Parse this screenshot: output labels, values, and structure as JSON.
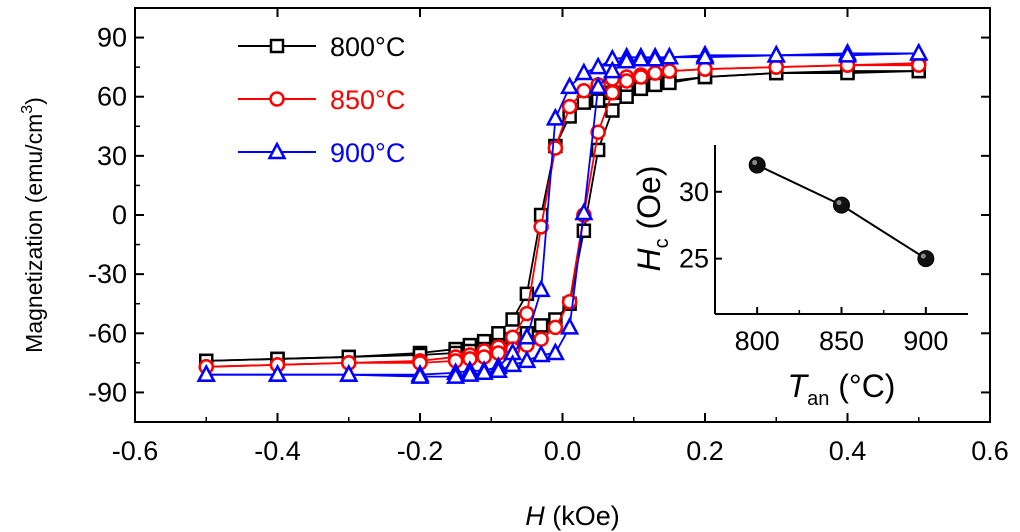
{
  "chart_data": [
    {
      "type": "line",
      "xlabel": {
        "symbol": "H",
        "unit": "(kOe)"
      },
      "ylabel": {
        "text": "Magnetization (emu/cm",
        "sup": "3",
        "close": ")"
      },
      "xlim": [
        -0.6,
        0.6
      ],
      "ylim": [
        -105,
        105
      ],
      "xticks": [
        "-0.6",
        "-0.4",
        "-0.2",
        "0.0",
        "0.2",
        "0.4",
        "0.6"
      ],
      "xtick_values": [
        -0.6,
        -0.4,
        -0.2,
        0.0,
        0.2,
        0.4,
        0.6
      ],
      "yticks": [
        "90",
        "60",
        "30",
        "0",
        "-30",
        "-60",
        "-90"
      ],
      "ytick_values": [
        90,
        60,
        30,
        0,
        -30,
        -60,
        -90
      ],
      "legend_position": "top-left",
      "series": [
        {
          "name": "800°C",
          "color": "#000000",
          "marker": "square",
          "descending": [
            [
              0.5,
              73
            ],
            [
              0.4,
              73
            ],
            [
              0.3,
              72
            ],
            [
              0.2,
              70
            ],
            [
              0.15,
              68
            ],
            [
              0.13,
              67
            ],
            [
              0.11,
              66
            ],
            [
              0.09,
              65
            ],
            [
              0.07,
              62
            ],
            [
              0.05,
              58
            ],
            [
              0.03,
              57
            ],
            [
              0.01,
              50
            ],
            [
              -0.01,
              35
            ],
            [
              -0.03,
              0
            ],
            [
              -0.05,
              -40
            ],
            [
              -0.07,
              -53
            ],
            [
              -0.09,
              -60
            ],
            [
              -0.11,
              -64
            ],
            [
              -0.13,
              -66
            ],
            [
              -0.15,
              -68
            ],
            [
              -0.2,
              -70
            ],
            [
              -0.3,
              -72
            ],
            [
              -0.4,
              -73
            ],
            [
              -0.5,
              -74
            ]
          ],
          "ascending": [
            [
              -0.5,
              -74
            ],
            [
              -0.4,
              -73
            ],
            [
              -0.3,
              -72
            ],
            [
              -0.2,
              -71
            ],
            [
              -0.15,
              -70
            ],
            [
              -0.13,
              -69
            ],
            [
              -0.11,
              -68
            ],
            [
              -0.09,
              -66
            ],
            [
              -0.07,
              -63
            ],
            [
              -0.05,
              -60
            ],
            [
              -0.03,
              -56
            ],
            [
              -0.01,
              -53
            ],
            [
              0.01,
              -45
            ],
            [
              0.03,
              -8
            ],
            [
              0.05,
              33
            ],
            [
              0.07,
              53
            ],
            [
              0.09,
              60
            ],
            [
              0.11,
              64
            ],
            [
              0.13,
              66
            ],
            [
              0.15,
              67
            ],
            [
              0.2,
              70
            ],
            [
              0.3,
              72
            ],
            [
              0.4,
              72
            ],
            [
              0.5,
              73
            ]
          ]
        },
        {
          "name": "850°C",
          "color": "#ff0000",
          "marker": "circle",
          "descending": [
            [
              0.5,
              77
            ],
            [
              0.4,
              76
            ],
            [
              0.3,
              75
            ],
            [
              0.2,
              74
            ],
            [
              0.15,
              73
            ],
            [
              0.13,
              72
            ],
            [
              0.11,
              71
            ],
            [
              0.09,
              70
            ],
            [
              0.07,
              69
            ],
            [
              0.05,
              66
            ],
            [
              0.03,
              63
            ],
            [
              0.01,
              55
            ],
            [
              -0.01,
              34
            ],
            [
              -0.03,
              -6
            ],
            [
              -0.05,
              -50
            ],
            [
              -0.07,
              -62
            ],
            [
              -0.09,
              -67
            ],
            [
              -0.11,
              -69
            ],
            [
              -0.13,
              -71
            ],
            [
              -0.15,
              -72
            ],
            [
              -0.2,
              -74
            ],
            [
              -0.3,
              -75
            ],
            [
              -0.4,
              -76
            ],
            [
              -0.5,
              -77
            ]
          ],
          "ascending": [
            [
              -0.5,
              -77
            ],
            [
              -0.4,
              -76
            ],
            [
              -0.3,
              -75
            ],
            [
              -0.2,
              -75
            ],
            [
              -0.15,
              -74
            ],
            [
              -0.13,
              -73
            ],
            [
              -0.11,
              -72
            ],
            [
              -0.09,
              -70
            ],
            [
              -0.07,
              -68
            ],
            [
              -0.05,
              -66
            ],
            [
              -0.03,
              -63
            ],
            [
              -0.01,
              -57
            ],
            [
              0.01,
              -44
            ],
            [
              0.03,
              0
            ],
            [
              0.05,
              42
            ],
            [
              0.07,
              62
            ],
            [
              0.09,
              68
            ],
            [
              0.11,
              70
            ],
            [
              0.13,
              72
            ],
            [
              0.15,
              73
            ],
            [
              0.2,
              74
            ],
            [
              0.3,
              75
            ],
            [
              0.4,
              76
            ],
            [
              0.5,
              76
            ]
          ]
        },
        {
          "name": "900°C",
          "color": "#0000ff",
          "marker": "triangle",
          "descending": [
            [
              0.5,
              82
            ],
            [
              0.4,
              82
            ],
            [
              0.3,
              81
            ],
            [
              0.2,
              81
            ],
            [
              0.15,
              80
            ],
            [
              0.13,
              80
            ],
            [
              0.11,
              80
            ],
            [
              0.09,
              80
            ],
            [
              0.07,
              79
            ],
            [
              0.05,
              75
            ],
            [
              0.03,
              72
            ],
            [
              0.01,
              65
            ],
            [
              -0.01,
              49
            ],
            [
              -0.03,
              -38
            ],
            [
              -0.05,
              -62
            ],
            [
              -0.07,
              -70
            ],
            [
              -0.09,
              -77
            ],
            [
              -0.11,
              -79
            ],
            [
              -0.13,
              -79
            ],
            [
              -0.15,
              -80
            ],
            [
              -0.2,
              -81
            ],
            [
              -0.3,
              -81
            ],
            [
              -0.4,
              -81
            ],
            [
              -0.5,
              -81
            ]
          ],
          "ascending": [
            [
              -0.5,
              -81
            ],
            [
              -0.4,
              -81
            ],
            [
              -0.3,
              -81
            ],
            [
              -0.2,
              -82
            ],
            [
              -0.15,
              -82
            ],
            [
              -0.13,
              -81
            ],
            [
              -0.11,
              -80
            ],
            [
              -0.09,
              -79
            ],
            [
              -0.07,
              -76
            ],
            [
              -0.05,
              -74
            ],
            [
              -0.03,
              -71
            ],
            [
              -0.01,
              -70
            ],
            [
              0.01,
              -57
            ],
            [
              0.03,
              1
            ],
            [
              0.05,
              65
            ],
            [
              0.07,
              73
            ],
            [
              0.09,
              78
            ],
            [
              0.11,
              79
            ],
            [
              0.13,
              79
            ],
            [
              0.15,
              80
            ],
            [
              0.2,
              80
            ],
            [
              0.3,
              81
            ],
            [
              0.4,
              81
            ],
            [
              0.5,
              82
            ]
          ]
        }
      ]
    },
    {
      "type": "line",
      "inset": true,
      "xlabel": {
        "symbol": "T",
        "sub": "an",
        "unit": "(°C)"
      },
      "ylabel": {
        "symbol": "H",
        "sub": "c",
        "unit": "(Oe)"
      },
      "xlim": [
        775,
        925
      ],
      "ylim": [
        24,
        33.5
      ],
      "xticks": [
        "800",
        "850",
        "900"
      ],
      "xtick_values": [
        800,
        850,
        900
      ],
      "yticks": [
        "30",
        "25"
      ],
      "ytick_values": [
        30,
        25
      ],
      "x": [
        800,
        850,
        900
      ],
      "y": [
        32,
        29,
        25
      ],
      "color": "#000000",
      "marker": "filled-circle"
    }
  ]
}
